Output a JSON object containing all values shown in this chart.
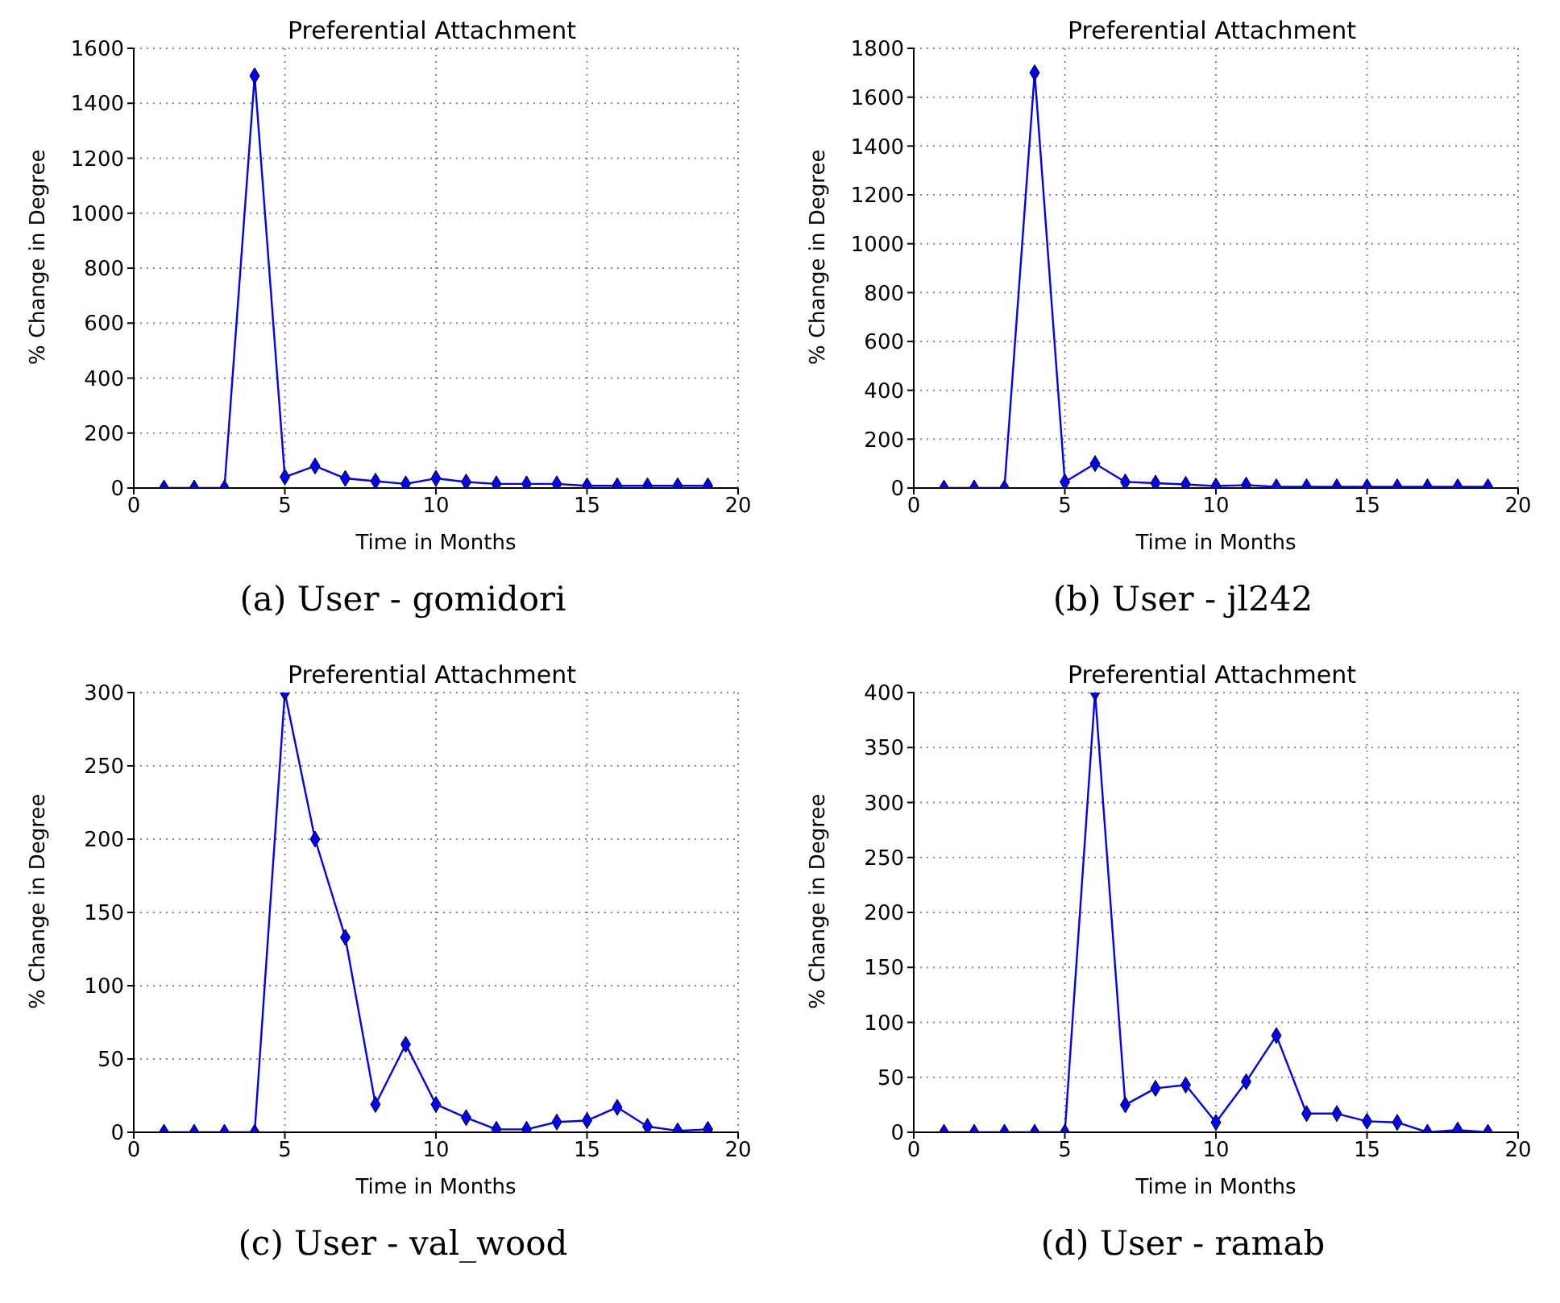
{
  "chart_data": [
    {
      "type": "line",
      "title": "Preferential Attachment",
      "xlabel": "Time in Months",
      "ylabel": "% Change in Degree",
      "x": [
        1,
        2,
        3,
        4,
        5,
        6,
        7,
        8,
        9,
        10,
        11,
        12,
        13,
        14,
        15,
        16,
        17,
        18,
        19
      ],
      "series": [
        {
          "color": "#0000ff",
          "values": [
            0,
            0,
            0,
            1500,
            40,
            80,
            35,
            25,
            15,
            35,
            22,
            15,
            15,
            15,
            8,
            8,
            8,
            8,
            8
          ]
        }
      ],
      "xlim": [
        0,
        20
      ],
      "xticks": [
        0,
        5,
        10,
        15,
        20
      ],
      "ylim": [
        0,
        1600
      ],
      "yticks": [
        0,
        200,
        400,
        600,
        800,
        1000,
        1200,
        1400,
        1600
      ],
      "grid": true,
      "marker": "diamond",
      "annotations": [
        "(a) User - gomidori"
      ]
    },
    {
      "type": "line",
      "title": "Preferential Attachment",
      "xlabel": "Time in Months",
      "ylabel": "% Change in Degree",
      "x": [
        1,
        2,
        3,
        4,
        5,
        6,
        7,
        8,
        9,
        10,
        11,
        12,
        13,
        14,
        15,
        16,
        17,
        18,
        19
      ],
      "series": [
        {
          "color": "#0000ff",
          "values": [
            0,
            0,
            0,
            1700,
            25,
            100,
            25,
            20,
            15,
            8,
            12,
            5,
            5,
            5,
            5,
            5,
            5,
            5,
            5
          ]
        }
      ],
      "xlim": [
        0,
        20
      ],
      "xticks": [
        0,
        5,
        10,
        15,
        20
      ],
      "ylim": [
        0,
        1800
      ],
      "yticks": [
        0,
        200,
        400,
        600,
        800,
        1000,
        1200,
        1400,
        1600,
        1800
      ],
      "grid": true,
      "marker": "diamond",
      "annotations": [
        "(b) User - jl242"
      ]
    },
    {
      "type": "line",
      "title": "Preferential Attachment",
      "xlabel": "Time in Months",
      "ylabel": "% Change in Degree",
      "x": [
        1,
        2,
        3,
        4,
        5,
        6,
        7,
        8,
        9,
        10,
        11,
        12,
        13,
        14,
        15,
        16,
        17,
        18,
        19
      ],
      "series": [
        {
          "color": "#0000ff",
          "values": [
            0,
            0,
            0,
            0,
            300,
            200,
            133,
            19,
            60,
            19,
            10,
            2,
            2,
            7,
            8,
            17,
            4,
            1,
            2
          ]
        }
      ],
      "xlim": [
        0,
        20
      ],
      "xticks": [
        0,
        5,
        10,
        15,
        20
      ],
      "ylim": [
        0,
        300
      ],
      "yticks": [
        0,
        50,
        100,
        150,
        200,
        250,
        300
      ],
      "grid": true,
      "marker": "diamond",
      "annotations": [
        "(c) User - val_wood"
      ]
    },
    {
      "type": "line",
      "title": "Preferential Attachment",
      "xlabel": "Time in Months",
      "ylabel": "% Change in Degree",
      "x": [
        1,
        2,
        3,
        4,
        5,
        6,
        7,
        8,
        9,
        10,
        11,
        12,
        13,
        14,
        15,
        16,
        17,
        18,
        19
      ],
      "series": [
        {
          "color": "#0000ff",
          "values": [
            0,
            0,
            0,
            0,
            0,
            400,
            25,
            40,
            43,
            9,
            46,
            88,
            17,
            17,
            10,
            9,
            0,
            2,
            0
          ]
        }
      ],
      "xlim": [
        0,
        20
      ],
      "xticks": [
        0,
        5,
        10,
        15,
        20
      ],
      "ylim": [
        0,
        400
      ],
      "yticks": [
        0,
        50,
        100,
        150,
        200,
        250,
        300,
        350,
        400
      ],
      "grid": true,
      "marker": "diamond",
      "annotations": [
        "(d) User - ramab"
      ]
    }
  ]
}
